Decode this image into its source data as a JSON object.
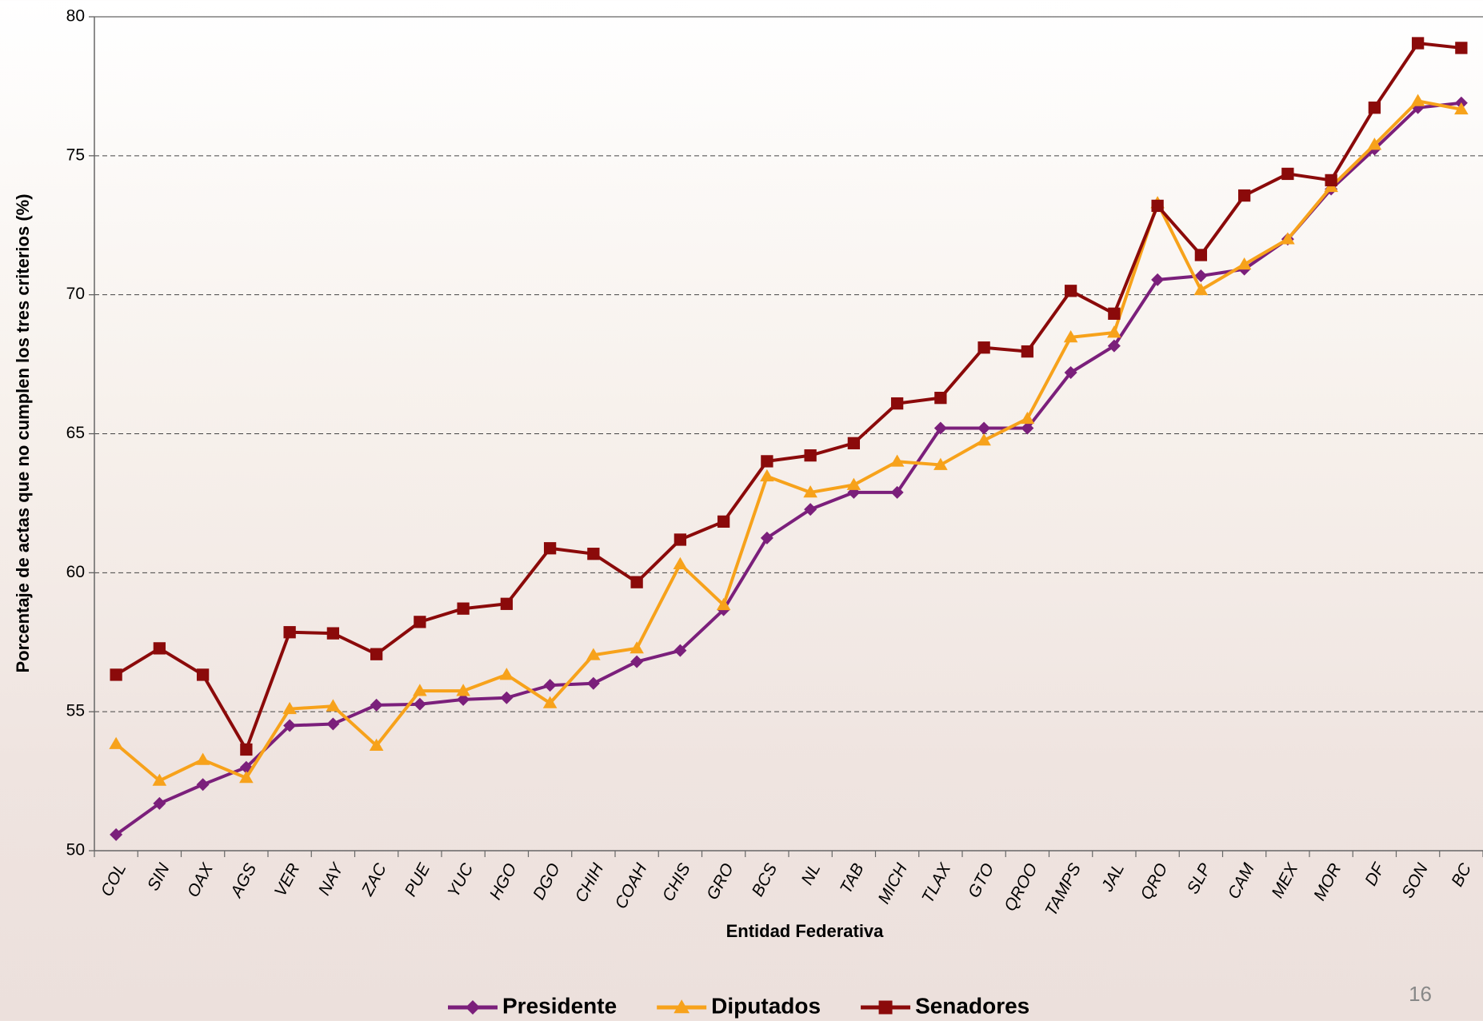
{
  "chart_data": {
    "type": "line",
    "x_label": "Entidad Federativa",
    "y_label": "Porcentaje de actas que no cumplen los tres criterios (%)",
    "categories": [
      "COL",
      "SIN",
      "OAX",
      "AGS",
      "VER",
      "NAY",
      "ZAC",
      "PUE",
      "YUC",
      "HGO",
      "DGO",
      "CHIH",
      "COAH",
      "CHIS",
      "GRO",
      "BCS",
      "NL",
      "TAB",
      "MICH",
      "TLAX",
      "GTO",
      "QROO",
      "TAMPS",
      "JAL",
      "QRO",
      "SLP",
      "CAM",
      "MEX",
      "MOR",
      "DF",
      "SON",
      "BC"
    ],
    "series": [
      {
        "name": "Presidente",
        "color": "#7b1f7b",
        "marker": "diamond",
        "values": [
          50.58,
          51.7,
          52.38,
          53.0,
          54.5,
          54.56,
          55.24,
          55.27,
          55.44,
          55.5,
          55.95,
          56.02,
          56.8,
          57.2,
          58.67,
          61.25,
          62.28,
          62.89,
          62.89,
          65.2,
          65.2,
          65.2,
          67.2,
          68.16,
          70.54,
          70.68,
          70.92,
          72.0,
          73.8,
          75.24,
          76.73,
          76.9
        ]
      },
      {
        "name": "Diputados",
        "color": "#f7a21b",
        "marker": "triangle",
        "values": [
          53.84,
          52.52,
          53.27,
          52.62,
          55.1,
          55.2,
          53.78,
          55.75,
          55.75,
          56.33,
          55.31,
          57.04,
          57.28,
          60.31,
          58.84,
          63.47,
          62.89,
          63.16,
          64.0,
          63.88,
          64.76,
          65.54,
          68.47,
          68.64,
          73.3,
          70.17,
          71.09,
          72.0,
          73.88,
          75.4,
          76.97,
          76.67
        ]
      },
      {
        "name": "Senadores",
        "color": "#8b0a0a",
        "marker": "square",
        "values": [
          56.33,
          57.28,
          56.33,
          53.64,
          57.86,
          57.82,
          57.07,
          58.23,
          58.71,
          58.88,
          60.88,
          60.68,
          59.66,
          61.19,
          61.84,
          64.01,
          64.22,
          64.66,
          66.09,
          66.29,
          68.1,
          67.96,
          70.14,
          69.32,
          73.2,
          71.43,
          73.57,
          74.35,
          74.12,
          76.73,
          79.05,
          78.88
        ]
      }
    ],
    "ylim": [
      50,
      80
    ],
    "yticks": [
      50,
      55,
      60,
      65,
      70,
      75,
      80
    ],
    "grid": true,
    "legend": "bottom",
    "page_number": "16"
  }
}
